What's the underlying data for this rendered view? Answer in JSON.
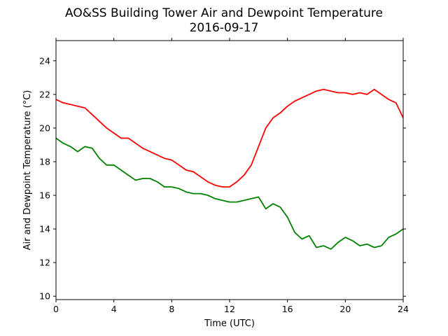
{
  "chart_data": {
    "type": "line",
    "title": "AO&SS Building Tower Air and Dewpoint Temperature",
    "subtitle": "2016-09-17",
    "xlabel": "Time (UTC)",
    "ylabel": "Air and Dewpoint Temperature (°C)",
    "xlim": [
      0,
      24
    ],
    "ylim": [
      9.8,
      25.2
    ],
    "xticks": [
      0,
      4,
      8,
      12,
      16,
      20,
      24
    ],
    "yticks": [
      10,
      12,
      14,
      16,
      18,
      20,
      22,
      24
    ],
    "grid": false,
    "legend": "none",
    "series": [
      {
        "color": "#ff0000",
        "x": [
          0,
          0.5,
          1,
          1.5,
          2,
          2.5,
          3,
          3.5,
          4,
          4.5,
          5,
          5.5,
          6,
          6.5,
          7,
          7.5,
          8,
          8.5,
          9,
          9.5,
          10,
          10.5,
          11,
          11.5,
          12,
          12.5,
          13,
          13.5,
          14,
          14.5,
          15,
          15.5,
          16,
          16.5,
          17,
          17.5,
          18,
          18.5,
          19,
          19.5,
          20,
          20.5,
          21,
          21.5,
          22,
          22.5,
          23,
          23.5,
          24
        ],
        "values": [
          21.7,
          21.5,
          21.4,
          21.3,
          21.2,
          20.8,
          20.4,
          20.0,
          19.7,
          19.4,
          19.4,
          19.1,
          18.8,
          18.6,
          18.4,
          18.2,
          18.1,
          17.8,
          17.5,
          17.4,
          17.1,
          16.8,
          16.6,
          16.5,
          16.5,
          16.8,
          17.2,
          17.8,
          18.9,
          20.0,
          20.6,
          20.9,
          21.3,
          21.6,
          21.8,
          22.0,
          22.2,
          22.3,
          22.2,
          22.1,
          22.1,
          22.0,
          22.1,
          22.0,
          22.3,
          22.0,
          21.7,
          21.5,
          20.6
        ]
      },
      {
        "color": "#008000",
        "x": [
          0,
          0.5,
          1,
          1.5,
          2,
          2.5,
          3,
          3.5,
          4,
          4.5,
          5,
          5.5,
          6,
          6.5,
          7,
          7.5,
          8,
          8.5,
          9,
          9.5,
          10,
          10.5,
          11,
          11.5,
          12,
          12.5,
          13,
          13.5,
          14,
          14.5,
          15,
          15.5,
          16,
          16.5,
          17,
          17.5,
          18,
          18.5,
          19,
          19.5,
          20,
          20.5,
          21,
          21.5,
          22,
          22.5,
          23,
          23.5,
          24
        ],
        "values": [
          19.4,
          19.1,
          18.9,
          18.6,
          18.9,
          18.8,
          18.2,
          17.8,
          17.8,
          17.5,
          17.2,
          16.9,
          17.0,
          17.0,
          16.8,
          16.5,
          16.5,
          16.4,
          16.2,
          16.1,
          16.1,
          16.0,
          15.8,
          15.7,
          15.6,
          15.6,
          15.7,
          15.8,
          15.9,
          15.2,
          15.5,
          15.3,
          14.7,
          13.8,
          13.4,
          13.6,
          12.9,
          13.0,
          12.8,
          13.2,
          13.5,
          13.3,
          13.0,
          13.1,
          12.9,
          13.0,
          13.5,
          13.7,
          14.0
        ]
      }
    ]
  }
}
